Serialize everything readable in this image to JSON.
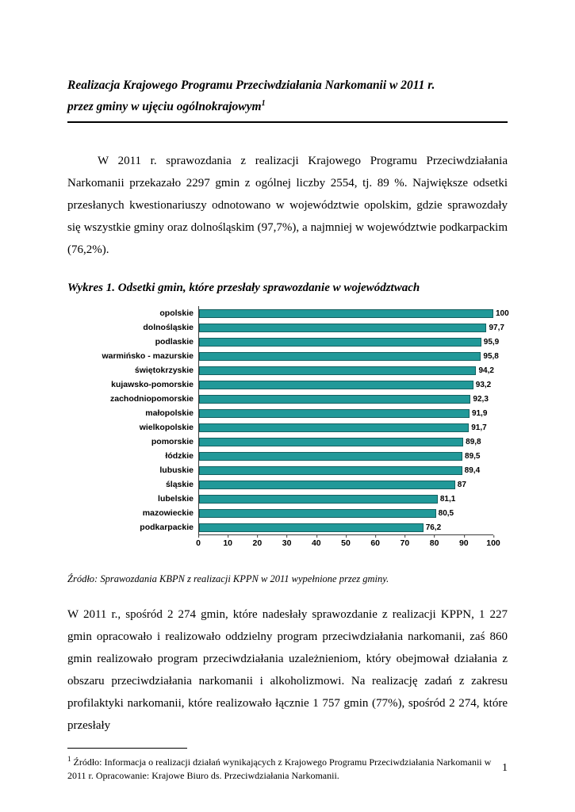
{
  "document": {
    "title_line1": "Realizacja Krajowego Programu Przeciwdziałania Narkomanii  w 2011 r.",
    "title_line2": "przez gminy w ujęciu ogólnokrajowym",
    "title_footnote_ref": "1",
    "paragraph1": "W 2011 r. sprawozdania z realizacji Krajowego Programu Przeciwdziałania Narkomanii przekazało 2297 gmin z ogólnej liczby 2554, tj. 89 %. Największe odsetki przesłanych kwestionariuszy odnotowano w województwie opolskim, gdzie sprawozdały się wszystkie gminy oraz dolnośląskim (97,7%), a najmniej w województwie podkarpackim (76,2%).",
    "chart_caption": "Wykres 1. Odsetki gmin, które przesłały sprawozdanie w województwach",
    "source_note": "Źródło: Sprawozdania KBPN z realizacji KPPN w 2011 wypełnione przez gminy.",
    "paragraph2": "W 2011 r., spośród 2 274 gmin, które nadesłały sprawozdanie z realizacji KPPN, 1 227 gmin opracowało i realizowało oddzielny program przeciwdziałania narkomanii, zaś 860  gmin realizowało program przeciwdziałania uzależnieniom, który obejmował działania z obszaru przeciwdziałania narkomanii i alkoholizmowi. Na realizację zadań z zakresu profilaktyki narkomanii, które realizowało łącznie 1 757 gmin (77%), spośród 2 274, które przesłały",
    "footnote_marker": "1",
    "footnote_text": " Źródło: Informacja o realizacji  działań wynikających z Krajowego Programu Przeciwdziałania Narkomanii w 2011 r. Opracowanie: Krajowe Biuro ds. Przeciwdziałania Narkomanii.",
    "page_number": "1"
  },
  "chart_data": {
    "type": "bar",
    "orientation": "horizontal",
    "title": "Wykres 1. Odsetki gmin, które przesłały sprawozdanie w województwach",
    "categories": [
      "opolskie",
      "dolnośląskie",
      "podlaskie",
      "warmińsko - mazurskie",
      "świętokrzyskie",
      "kujawsko-pomorskie",
      "zachodniopomorskie",
      "małopolskie",
      "wielkopolskie",
      "pomorskie",
      "łódzkie",
      "lubuskie",
      "śląskie",
      "lubelskie",
      "mazowieckie",
      "podkarpackie"
    ],
    "values": [
      100,
      97.7,
      95.9,
      95.8,
      94.2,
      93.2,
      92.3,
      91.9,
      91.7,
      89.8,
      89.5,
      89.4,
      87,
      81.1,
      80.5,
      76.2
    ],
    "value_labels": [
      "100",
      "97,7",
      "95,9",
      "95,8",
      "94,2",
      "93,2",
      "92,3",
      "91,9",
      "91,7",
      "89,8",
      "89,5",
      "89,4",
      "87",
      "81,1",
      "80,5",
      "76,2"
    ],
    "x_ticks": [
      0,
      10,
      20,
      30,
      40,
      50,
      60,
      70,
      80,
      90,
      100
    ],
    "xlim": [
      0,
      100
    ],
    "xlabel": "",
    "ylabel": "",
    "grid": false,
    "legend": false,
    "bar_color": "#219999",
    "bar_border_color": "#145f5f"
  }
}
